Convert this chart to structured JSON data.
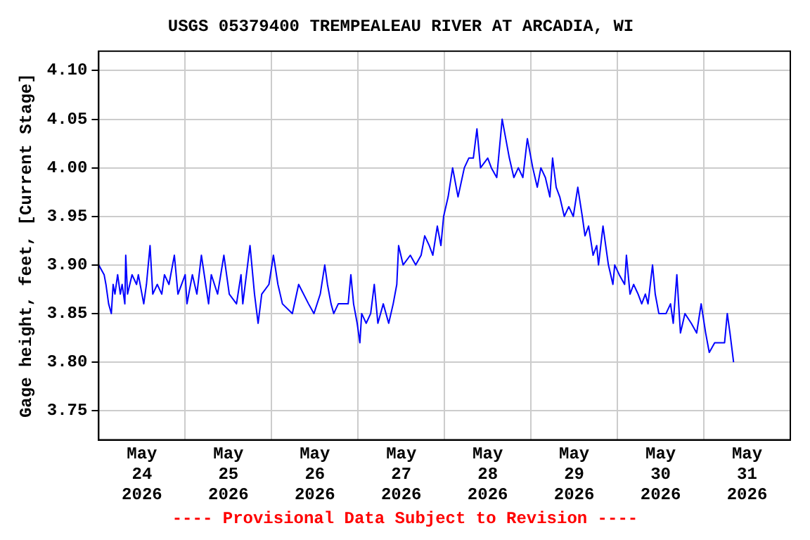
{
  "chart_data": {
    "type": "line",
    "title": "USGS 05379400 TREMPEALEAU RIVER AT ARCADIA, WI",
    "ylabel": "Gage height, feet, [Current Stage]",
    "annotations": [
      "---- Provisional Data Subject to Revision ----"
    ],
    "x": [
      "2026-05-24T00:00",
      "2026-05-24T01:30",
      "2026-05-24T02:00",
      "2026-05-24T02:45",
      "2026-05-24T03:30",
      "2026-05-24T04:00",
      "2026-05-24T04:30",
      "2026-05-24T05:15",
      "2026-05-24T06:00",
      "2026-05-24T06:30",
      "2026-05-24T07:15",
      "2026-05-24T07:30",
      "2026-05-24T08:00",
      "2026-05-24T09:15",
      "2026-05-24T10:30",
      "2026-05-24T11:00",
      "2026-05-24T12:30",
      "2026-05-24T13:15",
      "2026-05-24T14:15",
      "2026-05-24T15:00",
      "2026-05-24T16:15",
      "2026-05-24T17:30",
      "2026-05-24T18:15",
      "2026-05-24T19:30",
      "2026-05-24T21:00",
      "2026-05-24T22:00",
      "2026-05-25T00:00",
      "2026-05-25T00:30",
      "2026-05-25T02:00",
      "2026-05-25T03:15",
      "2026-05-25T04:30",
      "2026-05-25T06:30",
      "2026-05-25T07:15",
      "2026-05-25T09:00",
      "2026-05-25T10:45",
      "2026-05-25T12:15",
      "2026-05-25T14:15",
      "2026-05-25T15:30",
      "2026-05-25T16:00",
      "2026-05-25T18:00",
      "2026-05-25T19:15",
      "2026-05-25T20:15",
      "2026-05-25T21:15",
      "2026-05-25T23:15",
      "2026-05-26T00:30",
      "2026-05-26T01:45",
      "2026-05-26T03:00",
      "2026-05-26T05:45",
      "2026-05-26T07:30",
      "2026-05-26T10:15",
      "2026-05-26T11:45",
      "2026-05-26T13:30",
      "2026-05-26T14:45",
      "2026-05-26T15:30",
      "2026-05-26T16:30",
      "2026-05-26T17:15",
      "2026-05-26T18:30",
      "2026-05-26T21:15",
      "2026-05-26T22:00",
      "2026-05-26T22:45",
      "2026-05-26T23:45",
      "2026-05-27T00:30",
      "2026-05-27T01:00",
      "2026-05-27T02:15",
      "2026-05-27T03:30",
      "2026-05-27T04:30",
      "2026-05-27T05:30",
      "2026-05-27T07:00",
      "2026-05-27T08:30",
      "2026-05-27T09:45",
      "2026-05-27T10:45",
      "2026-05-27T11:15",
      "2026-05-27T12:30",
      "2026-05-27T14:30",
      "2026-05-27T16:00",
      "2026-05-27T17:30",
      "2026-05-27T18:30",
      "2026-05-27T19:45",
      "2026-05-27T20:45",
      "2026-05-27T22:00",
      "2026-05-27T23:00",
      "2026-05-27T23:45",
      "2026-05-28T01:00",
      "2026-05-28T02:15",
      "2026-05-28T02:45",
      "2026-05-28T03:45",
      "2026-05-28T05:30",
      "2026-05-28T06:45",
      "2026-05-28T08:00",
      "2026-05-28T09:00",
      "2026-05-28T10:00",
      "2026-05-28T12:00",
      "2026-05-28T13:00",
      "2026-05-28T14:30",
      "2026-05-28T15:00",
      "2026-05-28T16:00",
      "2026-05-28T17:00",
      "2026-05-28T18:00",
      "2026-05-28T19:15",
      "2026-05-28T20:30",
      "2026-05-28T21:45",
      "2026-05-28T23:00",
      "2026-05-29T00:30",
      "2026-05-29T01:45",
      "2026-05-29T02:45",
      "2026-05-29T04:00",
      "2026-05-29T05:15",
      "2026-05-29T06:00",
      "2026-05-29T07:00",
      "2026-05-29T08:00",
      "2026-05-29T09:15",
      "2026-05-29T10:30",
      "2026-05-29T11:45",
      "2026-05-29T13:00",
      "2026-05-29T14:15",
      "2026-05-29T15:00",
      "2026-05-29T16:00",
      "2026-05-29T17:15",
      "2026-05-29T18:15",
      "2026-05-29T18:45",
      "2026-05-29T20:00",
      "2026-05-29T21:30",
      "2026-05-29T22:45",
      "2026-05-29T23:15",
      "2026-05-30T00:30",
      "2026-05-30T02:00",
      "2026-05-30T02:30",
      "2026-05-30T03:30",
      "2026-05-30T04:30",
      "2026-05-30T05:45",
      "2026-05-30T06:45",
      "2026-05-30T07:45",
      "2026-05-30T08:30",
      "2026-05-30T09:45",
      "2026-05-30T10:30",
      "2026-05-30T11:30",
      "2026-05-30T13:30",
      "2026-05-30T14:45",
      "2026-05-30T15:30",
      "2026-05-30T16:30",
      "2026-05-30T17:30",
      "2026-05-30T18:45",
      "2026-05-30T20:30",
      "2026-05-30T22:00",
      "2026-05-30T23:15",
      "2026-05-31T00:30",
      "2026-05-31T01:30",
      "2026-05-31T03:00",
      "2026-05-31T05:45",
      "2026-05-31T06:30",
      "2026-05-31T07:15",
      "2026-05-31T08:15"
    ],
    "series": [
      {
        "color": "#0000ff",
        "values": [
          3.9,
          3.89,
          3.88,
          3.86,
          3.85,
          3.88,
          3.87,
          3.89,
          3.87,
          3.88,
          3.86,
          3.91,
          3.87,
          3.89,
          3.88,
          3.89,
          3.86,
          3.88,
          3.92,
          3.87,
          3.88,
          3.87,
          3.89,
          3.88,
          3.91,
          3.87,
          3.89,
          3.86,
          3.89,
          3.87,
          3.91,
          3.86,
          3.89,
          3.87,
          3.91,
          3.87,
          3.86,
          3.89,
          3.86,
          3.92,
          3.87,
          3.84,
          3.87,
          3.88,
          3.91,
          3.88,
          3.86,
          3.85,
          3.88,
          3.86,
          3.85,
          3.87,
          3.9,
          3.88,
          3.86,
          3.85,
          3.86,
          3.86,
          3.89,
          3.86,
          3.84,
          3.82,
          3.85,
          3.84,
          3.85,
          3.88,
          3.84,
          3.86,
          3.84,
          3.86,
          3.88,
          3.92,
          3.9,
          3.91,
          3.9,
          3.91,
          3.93,
          3.92,
          3.91,
          3.94,
          3.92,
          3.95,
          3.97,
          4.0,
          3.99,
          3.97,
          4.0,
          4.01,
          4.01,
          4.04,
          4.0,
          4.01,
          4.0,
          3.99,
          4.01,
          4.05,
          4.03,
          4.01,
          3.99,
          4.0,
          3.99,
          4.03,
          4.0,
          3.98,
          4.0,
          3.99,
          3.97,
          4.01,
          3.98,
          3.97,
          3.95,
          3.96,
          3.95,
          3.98,
          3.95,
          3.93,
          3.94,
          3.91,
          3.92,
          3.9,
          3.94,
          3.9,
          3.88,
          3.9,
          3.89,
          3.88,
          3.91,
          3.87,
          3.88,
          3.87,
          3.86,
          3.87,
          3.86,
          3.9,
          3.87,
          3.85,
          3.85,
          3.86,
          3.84,
          3.89,
          3.83,
          3.85,
          3.84,
          3.83,
          3.86,
          3.83,
          3.81,
          3.82,
          3.82,
          3.85,
          3.83,
          3.8
        ]
      }
    ],
    "xlim": [
      "2026-05-24T00:00",
      "2026-06-01T00:00"
    ],
    "xticks": [
      {
        "value": "2026-05-24T12:00",
        "label": "May\n24\n2026"
      },
      {
        "value": "2026-05-25T00:00",
        "label": null
      },
      {
        "value": "2026-05-25T12:00",
        "label": "May\n25\n2026"
      },
      {
        "value": "2026-05-26T00:00",
        "label": null
      },
      {
        "value": "2026-05-26T12:00",
        "label": "May\n26\n2026"
      },
      {
        "value": "2026-05-27T00:00",
        "label": null
      },
      {
        "value": "2026-05-27T12:00",
        "label": "May\n27\n2026"
      },
      {
        "value": "2026-05-28T00:00",
        "label": null
      },
      {
        "value": "2026-05-28T12:00",
        "label": "May\n28\n2026"
      },
      {
        "value": "2026-05-29T00:00",
        "label": null
      },
      {
        "value": "2026-05-29T12:00",
        "label": "May\n29\n2026"
      },
      {
        "value": "2026-05-30T00:00",
        "label": null
      },
      {
        "value": "2026-05-30T12:00",
        "label": "May\n30\n2026"
      },
      {
        "value": "2026-05-31T00:00",
        "label": null
      },
      {
        "value": "2026-05-31T12:00",
        "label": "May\n31\n2026"
      }
    ],
    "ylim": [
      3.72,
      4.12
    ],
    "yticks": [
      {
        "value": 3.75,
        "label": "3.75"
      },
      {
        "value": 3.8,
        "label": "3.80"
      },
      {
        "value": 3.85,
        "label": "3.85"
      },
      {
        "value": 3.9,
        "label": "3.90"
      },
      {
        "value": 3.95,
        "label": "3.95"
      },
      {
        "value": 4.0,
        "label": "4.00"
      },
      {
        "value": 4.05,
        "label": "4.05"
      },
      {
        "value": 4.1,
        "label": "4.10"
      }
    ],
    "grid": true,
    "legend": false,
    "marker": "none",
    "line_style": "solid"
  }
}
